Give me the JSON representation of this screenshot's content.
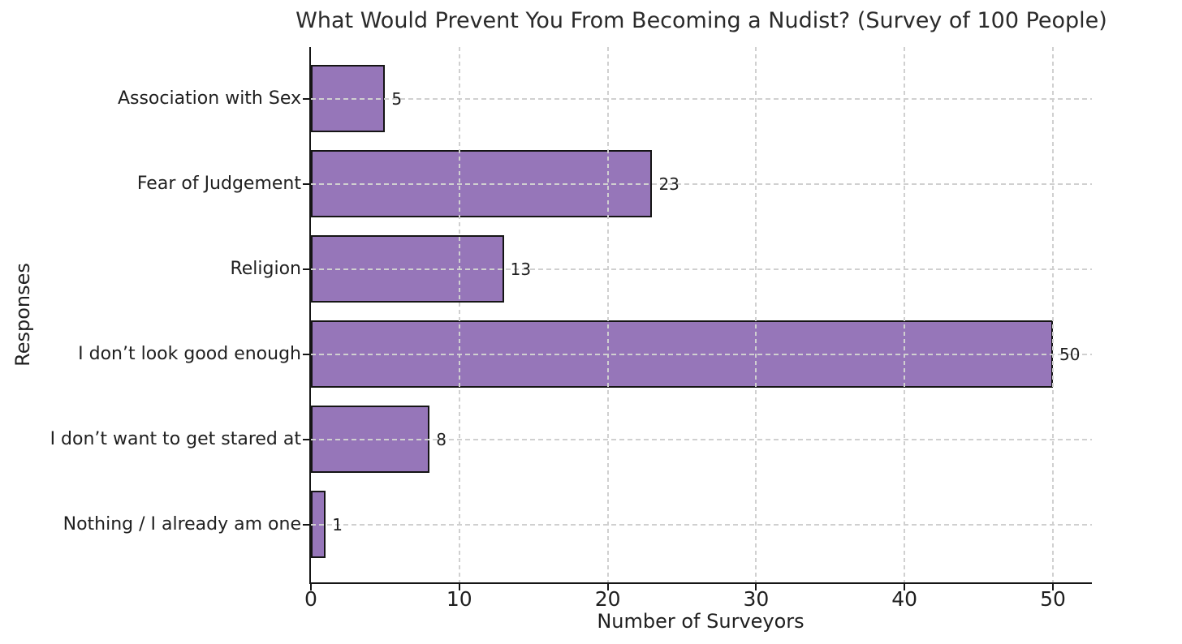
{
  "chart_data": {
    "type": "bar",
    "orientation": "horizontal",
    "title": "What Would Prevent You From Becoming a Nudist? (Survey of 100 People)",
    "xlabel": "Number of Surveyors",
    "ylabel": "Responses",
    "categories": [
      "Association with Sex",
      "Fear of Judgement",
      "Religion",
      "I don’t look good enough",
      "I don’t want to get stared at",
      "Nothing / I already am one"
    ],
    "values": [
      5,
      23,
      13,
      50,
      8,
      1
    ],
    "xticks": [
      0,
      10,
      20,
      30,
      40,
      50
    ],
    "xlim": [
      0,
      52.6
    ],
    "grid": "dashed-both-axes-over-bars",
    "legend": "none",
    "colors": {
      "bar_fill": "#9676B9",
      "bar_edge": "#151515",
      "grid": "#d0d0d0",
      "axis": "#151515",
      "text": "#1f1f1f"
    }
  }
}
